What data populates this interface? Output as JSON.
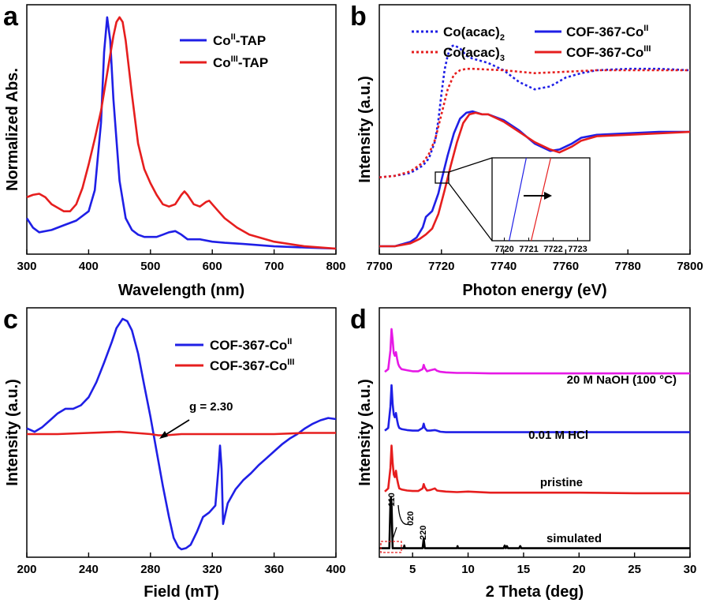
{
  "chart_data": [
    {
      "panel": "a",
      "type": "line",
      "xlabel": "Wavelength (nm)",
      "ylabel": "Normalized Abs.",
      "xlim": [
        300,
        800
      ],
      "ylim": [
        0,
        1.02
      ],
      "xticks": [
        300,
        400,
        500,
        600,
        700,
        800
      ],
      "legend_position": "top-right",
      "series": [
        {
          "name": "Co",
          "sup": "II",
          "suffix": "-TAP",
          "color": "#1f1fe6",
          "x": [
            300,
            310,
            320,
            340,
            360,
            380,
            400,
            410,
            420,
            425,
            430,
            435,
            440,
            450,
            460,
            470,
            480,
            490,
            500,
            510,
            520,
            530,
            540,
            550,
            560,
            570,
            580,
            600,
            620,
            650,
            700,
            750,
            800
          ],
          "y": [
            0.14,
            0.1,
            0.08,
            0.09,
            0.11,
            0.13,
            0.17,
            0.26,
            0.55,
            0.85,
            1.0,
            0.9,
            0.65,
            0.3,
            0.14,
            0.09,
            0.07,
            0.06,
            0.06,
            0.06,
            0.07,
            0.08,
            0.085,
            0.07,
            0.05,
            0.05,
            0.05,
            0.04,
            0.035,
            0.03,
            0.02,
            0.015,
            0.01
          ]
        },
        {
          "name": "Co",
          "sup": "III",
          "suffix": "-TAP",
          "color": "#e61e1e",
          "x": [
            300,
            310,
            320,
            330,
            340,
            360,
            370,
            380,
            390,
            400,
            410,
            420,
            430,
            440,
            445,
            450,
            455,
            460,
            470,
            480,
            490,
            500,
            510,
            520,
            530,
            540,
            550,
            555,
            560,
            570,
            580,
            590,
            595,
            600,
            610,
            620,
            640,
            660,
            700,
            750,
            800
          ],
          "y": [
            0.23,
            0.24,
            0.245,
            0.23,
            0.2,
            0.17,
            0.17,
            0.2,
            0.27,
            0.37,
            0.48,
            0.6,
            0.76,
            0.92,
            0.98,
            1.0,
            0.98,
            0.9,
            0.67,
            0.46,
            0.35,
            0.29,
            0.24,
            0.2,
            0.19,
            0.2,
            0.24,
            0.255,
            0.24,
            0.2,
            0.19,
            0.21,
            0.215,
            0.2,
            0.17,
            0.14,
            0.1,
            0.07,
            0.04,
            0.02,
            0.01
          ]
        }
      ]
    },
    {
      "panel": "b",
      "type": "line",
      "xlabel": "Photon energy (eV)",
      "ylabel": "Intensity (a.u.)",
      "xlim": [
        7700,
        7800
      ],
      "ylim": [
        0,
        1.55
      ],
      "xticks": [
        7700,
        7720,
        7740,
        7760,
        7780,
        7800
      ],
      "legend_position": "top",
      "series": [
        {
          "name": "Co(acac)",
          "sub": "2",
          "color": "#1f1fe6",
          "dash": true,
          "x": [
            7700,
            7705,
            7710,
            7714,
            7716,
            7718,
            7719,
            7720,
            7721,
            7722,
            7723,
            7724,
            7726,
            7728,
            7730,
            7735,
            7740,
            7745,
            7750,
            7755,
            7760,
            7765,
            7770,
            7780,
            7790,
            7800
          ],
          "y": [
            0.47,
            0.48,
            0.5,
            0.55,
            0.6,
            0.72,
            0.86,
            1.04,
            1.2,
            1.3,
            1.36,
            1.37,
            1.35,
            1.3,
            1.28,
            1.25,
            1.2,
            1.12,
            1.07,
            1.09,
            1.15,
            1.18,
            1.2,
            1.21,
            1.21,
            1.2
          ]
        },
        {
          "name": "Co(acac)",
          "sub": "3",
          "color": "#e61e1e",
          "dash": true,
          "x": [
            7700,
            7705,
            7710,
            7714,
            7716,
            7718,
            7720,
            7722,
            7724,
            7726,
            7728,
            7730,
            7740,
            7750,
            7760,
            7770,
            7780,
            7790,
            7800
          ],
          "y": [
            0.47,
            0.48,
            0.51,
            0.57,
            0.63,
            0.73,
            0.9,
            1.07,
            1.17,
            1.2,
            1.21,
            1.21,
            1.2,
            1.18,
            1.19,
            1.2,
            1.2,
            1.2,
            1.2
          ]
        },
        {
          "name": "COF-367-Co",
          "sup": "II",
          "color": "#1f1fe6",
          "dash": false,
          "x": [
            7700,
            7705,
            7710,
            7712,
            7714,
            7715,
            7717,
            7719,
            7720,
            7722,
            7724,
            7726,
            7728,
            7730,
            7733,
            7735,
            7740,
            7745,
            7750,
            7755,
            7758,
            7762,
            7765,
            7770,
            7780,
            7790,
            7800
          ],
          "y": [
            0.0,
            0.0,
            0.03,
            0.06,
            0.13,
            0.2,
            0.24,
            0.36,
            0.45,
            0.62,
            0.77,
            0.87,
            0.91,
            0.92,
            0.9,
            0.9,
            0.86,
            0.79,
            0.7,
            0.65,
            0.66,
            0.7,
            0.74,
            0.76,
            0.77,
            0.78,
            0.78
          ]
        },
        {
          "name": "COF-367-Co",
          "sup": "III",
          "color": "#e61e1e",
          "dash": false,
          "x": [
            7700,
            7705,
            7710,
            7713,
            7715,
            7717,
            7719,
            7721,
            7723,
            7725,
            7727,
            7729,
            7731,
            7733,
            7735,
            7740,
            7745,
            7750,
            7755,
            7758,
            7762,
            7765,
            7770,
            7780,
            7790,
            7800
          ],
          "y": [
            0.0,
            0.0,
            0.02,
            0.05,
            0.08,
            0.12,
            0.22,
            0.38,
            0.55,
            0.71,
            0.84,
            0.9,
            0.91,
            0.9,
            0.9,
            0.85,
            0.78,
            0.71,
            0.66,
            0.64,
            0.68,
            0.72,
            0.75,
            0.76,
            0.77,
            0.78
          ]
        }
      ],
      "inset": {
        "xlim": [
          7719.5,
          7723.5
        ],
        "xticks": [
          7720,
          7721,
          7722,
          7723
        ],
        "blue_line": {
          "x": [
            7720.2,
            7720.9
          ],
          "y": [
            0,
            1
          ]
        },
        "red_line": {
          "x": [
            7721.1,
            7721.9
          ],
          "y": [
            0,
            1
          ]
        },
        "arrow": "shift right"
      }
    },
    {
      "panel": "c",
      "type": "line",
      "xlabel": "Field (mT)",
      "ylabel": "Intensity (a.u.)",
      "xlim": [
        200,
        400
      ],
      "ylim": [
        -1.0,
        1.0
      ],
      "xticks": [
        200,
        240,
        280,
        320,
        360,
        400
      ],
      "legend_position": "top-right",
      "annotation": "g = 2.30",
      "series": [
        {
          "name": "COF-367-Co",
          "sup": "II",
          "color": "#1f1fe6",
          "x": [
            200,
            205,
            210,
            215,
            220,
            225,
            230,
            235,
            240,
            245,
            250,
            255,
            258,
            262,
            265,
            268,
            272,
            276,
            280,
            284,
            288,
            292,
            295,
            298,
            300,
            303,
            306,
            310,
            314,
            318,
            322,
            324,
            325,
            326,
            327,
            330,
            335,
            340,
            345,
            350,
            355,
            360,
            365,
            370,
            375,
            380,
            385,
            390,
            395,
            400
          ],
          "y": [
            0.05,
            0.02,
            0.06,
            0.12,
            0.18,
            0.22,
            0.22,
            0.25,
            0.32,
            0.45,
            0.62,
            0.8,
            0.92,
            1.0,
            0.98,
            0.9,
            0.7,
            0.42,
            0.15,
            -0.15,
            -0.45,
            -0.72,
            -0.9,
            -0.98,
            -1.0,
            -0.99,
            -0.96,
            -0.85,
            -0.72,
            -0.68,
            -0.62,
            -0.3,
            -0.1,
            -0.3,
            -0.78,
            -0.6,
            -0.48,
            -0.4,
            -0.34,
            -0.27,
            -0.21,
            -0.15,
            -0.09,
            -0.04,
            0.0,
            0.05,
            0.09,
            0.12,
            0.14,
            0.13
          ]
        },
        {
          "name": "COF-367-Co",
          "sup": "III",
          "color": "#e61e1e",
          "x": [
            200,
            220,
            240,
            260,
            270,
            280,
            285,
            290,
            300,
            320,
            340,
            360,
            380,
            400
          ],
          "y": [
            0.0,
            0.0,
            0.01,
            0.02,
            0.01,
            0.0,
            -0.01,
            -0.01,
            0.0,
            0.0,
            0.0,
            0.0,
            0.01,
            0.01
          ]
        }
      ]
    },
    {
      "panel": "d",
      "type": "line",
      "xlabel": "2 Theta (deg)",
      "ylabel": "Intensity (a.u.)",
      "xlim": [
        2,
        30
      ],
      "ylim": [
        0,
        4.4
      ],
      "xticks": [
        5,
        10,
        15,
        20,
        25,
        30
      ],
      "series": [
        {
          "name": "20 M NaOH (100 °C)",
          "color": "#e619e6",
          "offset": 3.3,
          "x": [
            2.5,
            2.8,
            3.0,
            3.1,
            3.2,
            3.3,
            3.4,
            3.5,
            3.6,
            3.7,
            3.8,
            4.0,
            4.5,
            5.0,
            5.5,
            5.9,
            6.0,
            6.1,
            6.3,
            6.6,
            7.0,
            7.2,
            7.5,
            8.0,
            9,
            10,
            12,
            15,
            20,
            25,
            30
          ],
          "y": [
            0.05,
            0.1,
            0.45,
            0.85,
            0.65,
            0.4,
            0.35,
            0.42,
            0.3,
            0.2,
            0.15,
            0.1,
            0.08,
            0.06,
            0.06,
            0.1,
            0.18,
            0.12,
            0.06,
            0.08,
            0.1,
            0.07,
            0.05,
            0.04,
            0.03,
            0.03,
            0.02,
            0.02,
            0.02,
            0.02,
            0.02
          ]
        },
        {
          "name": "0.01 M HCl",
          "color": "#1f1fe6",
          "offset": 2.2,
          "x": [
            2.5,
            2.8,
            3.0,
            3.1,
            3.2,
            3.3,
            3.4,
            3.5,
            3.6,
            3.7,
            3.8,
            4.0,
            4.5,
            5.0,
            5.5,
            5.9,
            6.0,
            6.1,
            6.3,
            6.6,
            7.0,
            7.2,
            7.5,
            8.0,
            9,
            10,
            12,
            15,
            20,
            25,
            30
          ],
          "y": [
            0.05,
            0.1,
            0.5,
            0.9,
            0.55,
            0.35,
            0.3,
            0.38,
            0.25,
            0.15,
            0.1,
            0.08,
            0.06,
            0.05,
            0.05,
            0.1,
            0.18,
            0.1,
            0.05,
            0.05,
            0.06,
            0.05,
            0.03,
            0.02,
            0.02,
            0.02,
            0.02,
            0.02,
            0.02,
            0.02,
            0.02
          ]
        },
        {
          "name": "pristine",
          "color": "#e61e1e",
          "offset": 1.05,
          "x": [
            2.5,
            2.8,
            3.0,
            3.1,
            3.2,
            3.3,
            3.4,
            3.5,
            3.6,
            3.7,
            3.8,
            4.0,
            4.5,
            5.0,
            5.5,
            5.9,
            6.0,
            6.1,
            6.3,
            6.6,
            7.0,
            7.2,
            7.5,
            8.0,
            9,
            10,
            12,
            15,
            20,
            25,
            30
          ],
          "y": [
            0.06,
            0.12,
            0.5,
            0.92,
            0.6,
            0.38,
            0.33,
            0.45,
            0.3,
            0.2,
            0.12,
            0.1,
            0.08,
            0.07,
            0.07,
            0.12,
            0.2,
            0.14,
            0.08,
            0.09,
            0.12,
            0.08,
            0.07,
            0.06,
            0.05,
            0.06,
            0.04,
            0.04,
            0.04,
            0.03,
            0.03
          ]
        },
        {
          "name": "simulated",
          "color": "#000000",
          "offset": 0.05,
          "x": [
            2.0,
            2.9,
            3.0,
            3.05,
            3.1,
            3.2,
            3.5,
            4.2,
            4.25,
            4.3,
            5.9,
            6.0,
            6.1,
            9.0,
            9.05,
            9.1,
            13.2,
            13.3,
            13.4,
            13.5,
            13.6,
            14.6,
            14.7,
            14.8,
            30
          ],
          "y": [
            0.0,
            0.0,
            0.85,
            0.95,
            0.85,
            0.0,
            0.0,
            0.0,
            0.05,
            0.0,
            0.0,
            0.18,
            0.0,
            0.0,
            0.04,
            0.0,
            0.0,
            0.05,
            0.0,
            0.04,
            0.0,
            0.0,
            0.04,
            0.0,
            0.0
          ]
        }
      ],
      "peak_labels": [
        "110",
        "020",
        "220"
      ]
    }
  ]
}
